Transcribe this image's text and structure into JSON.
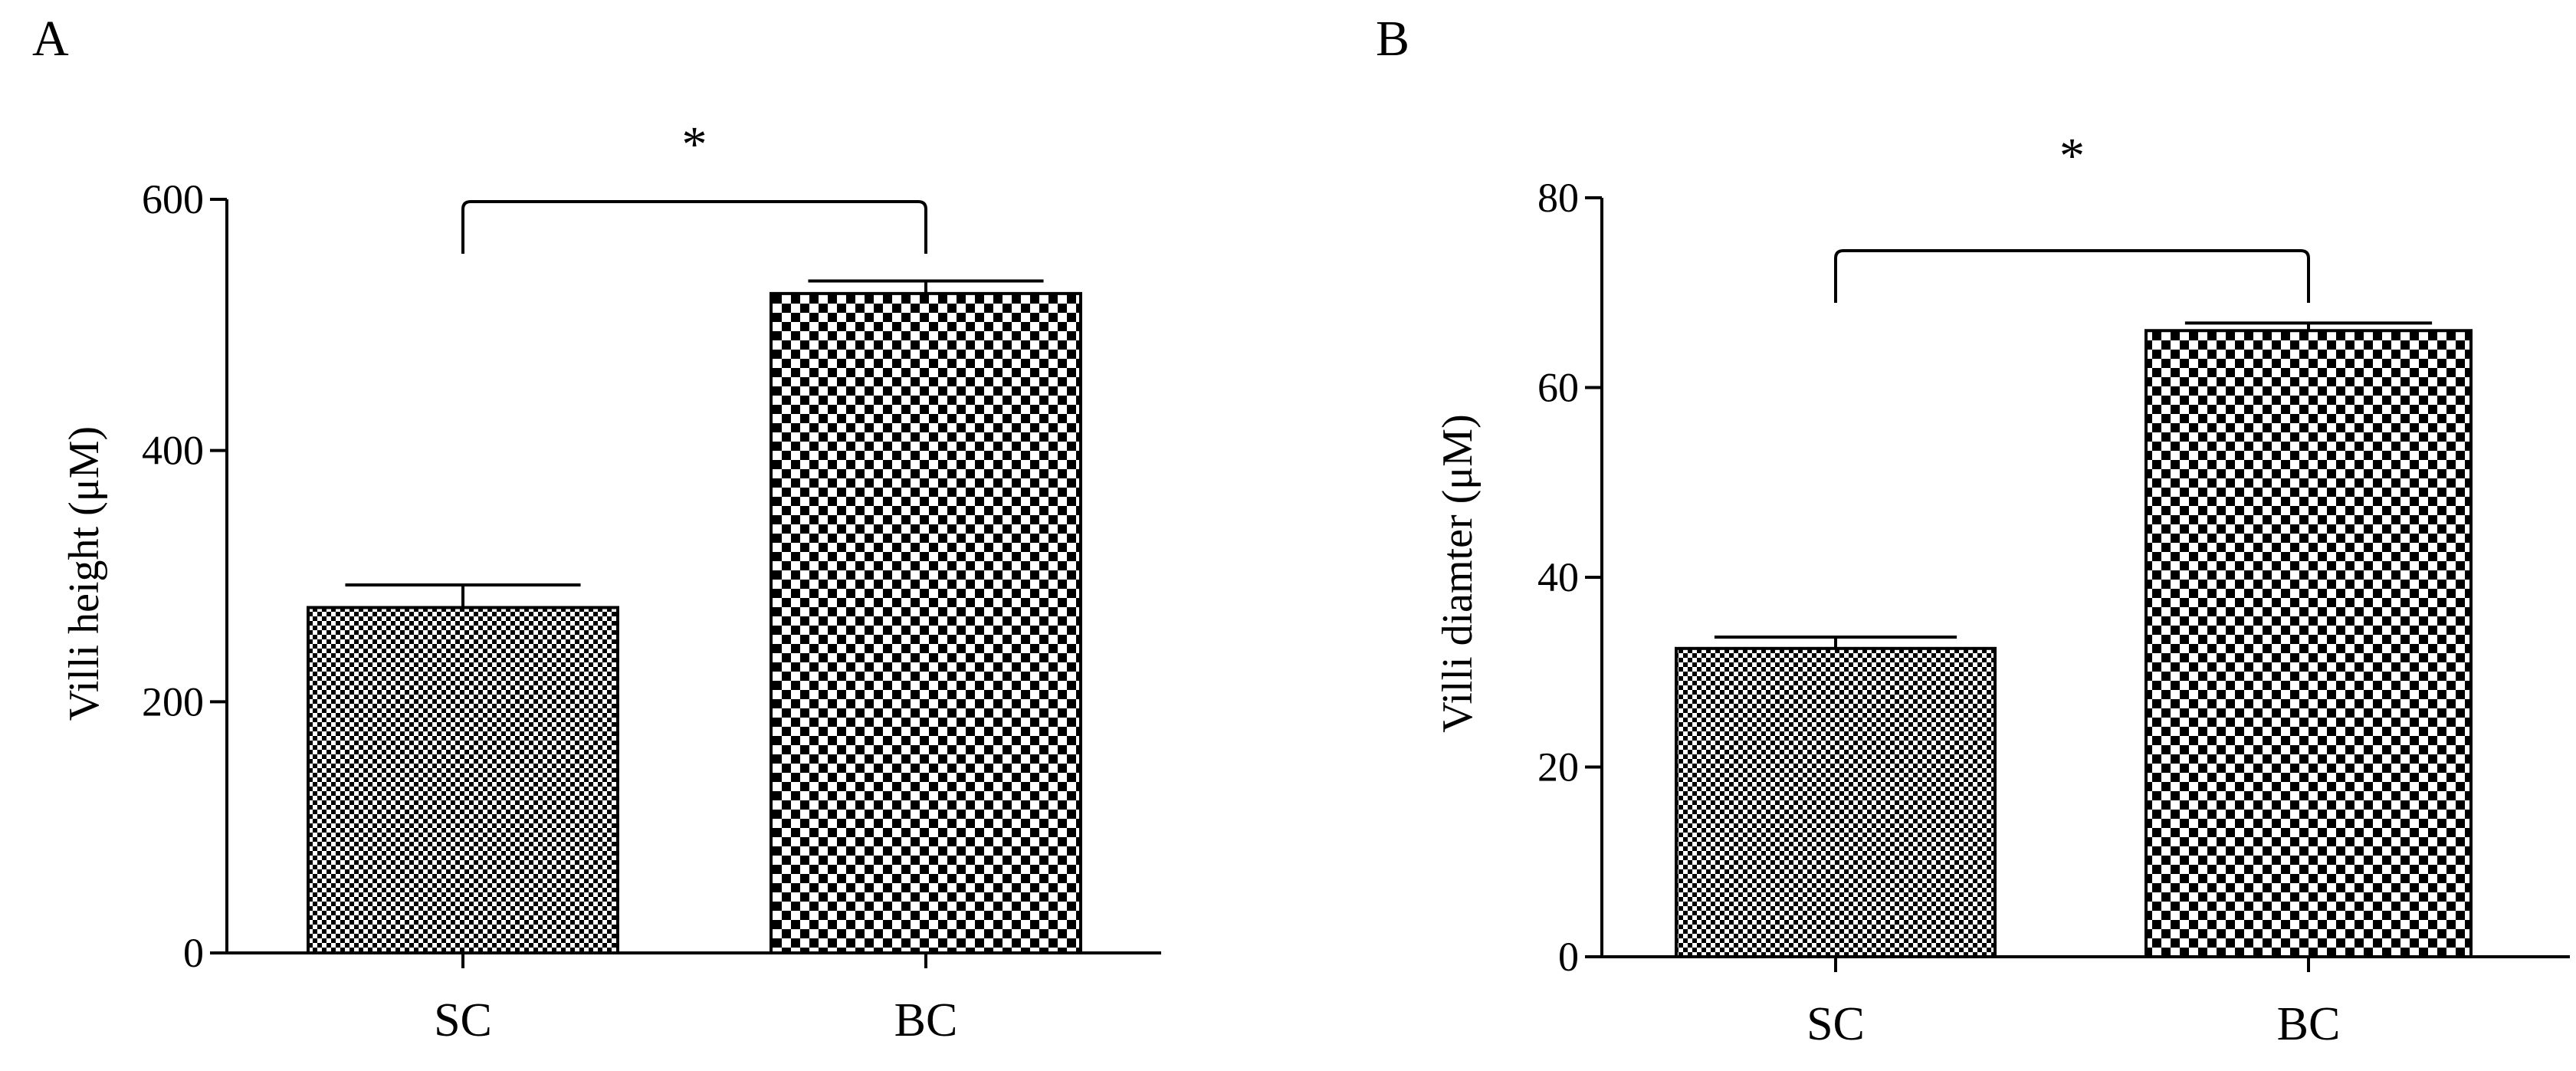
{
  "chart_data": [
    {
      "type": "bar",
      "panel_label": "A",
      "title": "",
      "xlabel": "",
      "ylabel": "Villi height (μM)",
      "categories": [
        "SC",
        "BC"
      ],
      "values": [
        275,
        525
      ],
      "errors": [
        18,
        10
      ],
      "ylim": [
        0,
        600
      ],
      "yticks": [
        0,
        200,
        400,
        600
      ],
      "ytick_labels": [
        "0",
        "200",
        "400",
        "600"
      ],
      "significance": {
        "label": "*",
        "between": [
          "SC",
          "BC"
        ]
      },
      "grid": false,
      "bar_fills": [
        "fine-checker",
        "coarse-checker"
      ]
    },
    {
      "type": "bar",
      "panel_label": "B",
      "title": "",
      "xlabel": "",
      "ylabel": "Villi diamter (μM)",
      "categories": [
        "SC",
        "BC"
      ],
      "values": [
        32.5,
        66
      ],
      "errors": [
        1.2,
        0.8
      ],
      "ylim": [
        0,
        80
      ],
      "yticks": [
        0,
        20,
        40,
        60,
        80
      ],
      "ytick_labels": [
        "0",
        "20",
        "40",
        "60",
        "80"
      ],
      "significance": {
        "label": "*",
        "between": [
          "SC",
          "BC"
        ]
      },
      "grid": false,
      "bar_fills": [
        "fine-checker",
        "coarse-checker"
      ]
    }
  ],
  "colors": {
    "ink": "#000000",
    "background": "#ffffff"
  }
}
